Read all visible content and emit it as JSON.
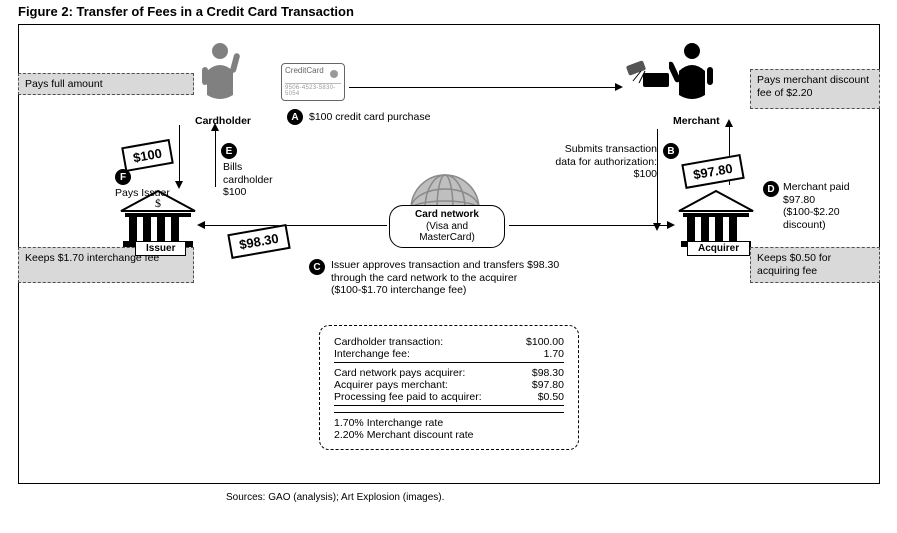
{
  "title": "Figure 2: Transfer of Fees in a Credit Card Transaction",
  "sources": "Sources: GAO (analysis); Art Explosion (images).",
  "colors": {
    "gray_box_bg": "#d9d9d9",
    "gray_box_border": "#4f4f4f",
    "ink": "#000000",
    "globe": "#9a9a9a",
    "card_border": "#888888"
  },
  "actors": {
    "cardholder": "Cardholder",
    "merchant": "Merchant",
    "issuer": "Issuer",
    "acquirer": "Acquirer"
  },
  "gray_boxes": {
    "cardholder_note": "Pays full amount",
    "merchant_note": "Pays merchant discount fee of $2.20",
    "issuer_note": "Keeps $1.70 interchange fee",
    "acquirer_note": "Keeps $0.50 for acquiring fee"
  },
  "card_network": {
    "title": "Card network",
    "subtitle": "(Visa and MasterCard)"
  },
  "credit_card_label": "CreditCard",
  "credit_card_number": "9506-4523-5830-5054",
  "steps": {
    "A": {
      "badge": "A",
      "text": "$100 credit card purchase"
    },
    "B": {
      "badge": "B",
      "text": "Submits transaction data for authorization: $100"
    },
    "C": {
      "badge": "C",
      "text": "Issuer approves transaction and transfers $98.30 through the card network to the acquirer  ($100-$1.70 interchange fee)"
    },
    "D": {
      "badge": "D",
      "text": "Merchant paid $97.80 ($100-$2.20 discount)"
    },
    "E": {
      "badge": "E",
      "text": "Bills cardholder $100"
    },
    "F": {
      "badge": "F",
      "text": "Pays Issuer"
    }
  },
  "amounts": {
    "f_tag": "$100",
    "c_tag": "$98.30",
    "d_tag": "$97.80"
  },
  "summary": {
    "rows": [
      {
        "label": "Cardholder transaction:",
        "value": "$100.00"
      },
      {
        "label": "Interchange fee:",
        "value": "1.70"
      },
      {
        "label": "Card network pays acquirer:",
        "value": "$98.30"
      },
      {
        "label": "Acquirer pays merchant:",
        "value": "$97.80"
      },
      {
        "label": "Processing fee paid to acquirer:",
        "value": "$0.50"
      }
    ],
    "rates": [
      "1.70% Interchange rate",
      "2.20% Merchant discount rate"
    ]
  }
}
